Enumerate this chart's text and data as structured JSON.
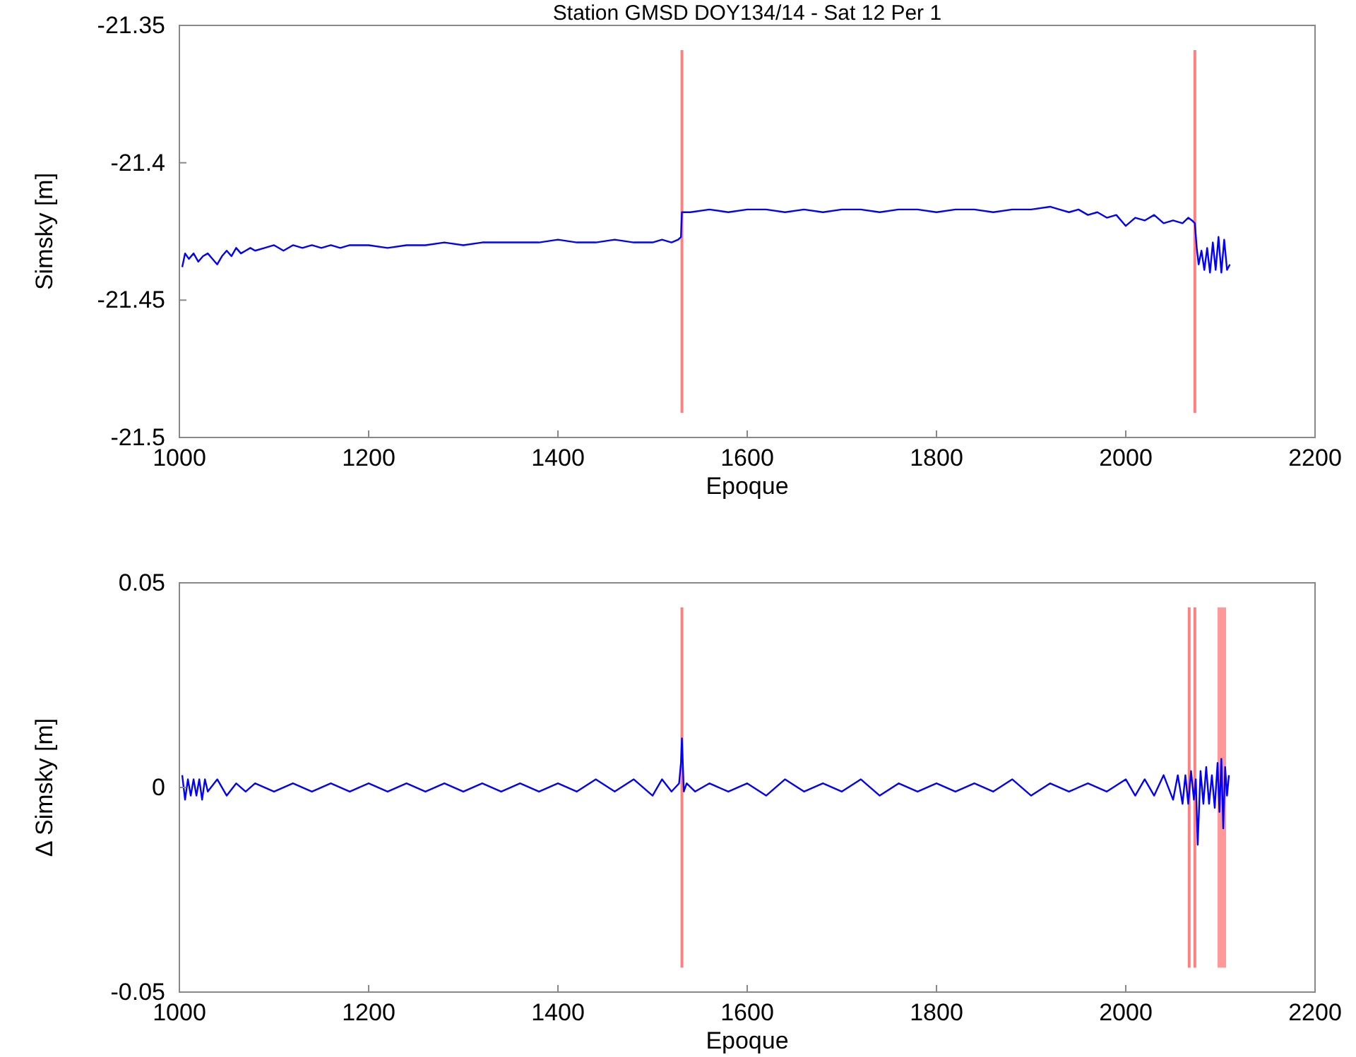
{
  "chart_data": [
    {
      "type": "line",
      "title": "Station GMSD DOY134/14 - Sat  12 Per 1",
      "xlabel": "Epoque",
      "ylabel": "Simsky [m]",
      "xlim": [
        1000,
        2200
      ],
      "xticks": [
        1000,
        1200,
        1400,
        1600,
        1800,
        2000,
        2200
      ],
      "ylim": [
        -21.5,
        -21.35
      ],
      "yticks": [
        -21.5,
        -21.45,
        -21.4,
        -21.35
      ],
      "grid": false,
      "series": [
        {
          "color": "#0000ff",
          "x": [
            1003,
            1006,
            1010,
            1015,
            1020,
            1025,
            1030,
            1035,
            1040,
            1045,
            1050,
            1055,
            1060,
            1065,
            1070,
            1075,
            1080,
            1090,
            1100,
            1110,
            1120,
            1130,
            1140,
            1150,
            1160,
            1170,
            1180,
            1200,
            1220,
            1240,
            1260,
            1280,
            1300,
            1320,
            1340,
            1360,
            1380,
            1400,
            1420,
            1440,
            1460,
            1480,
            1500,
            1510,
            1520,
            1527,
            1530,
            1531,
            1540,
            1560,
            1580,
            1600,
            1620,
            1640,
            1660,
            1680,
            1700,
            1720,
            1740,
            1760,
            1780,
            1800,
            1820,
            1840,
            1860,
            1880,
            1900,
            1920,
            1930,
            1940,
            1950,
            1960,
            1970,
            1980,
            1990,
            2000,
            2010,
            2020,
            2030,
            2040,
            2050,
            2060,
            2066,
            2070,
            2073,
            2075,
            2077,
            2080,
            2083,
            2086,
            2089,
            2092,
            2095,
            2098,
            2101,
            2104,
            2107,
            2110
          ],
          "values": [
            -21.438,
            -21.433,
            -21.435,
            -21.433,
            -21.436,
            -21.434,
            -21.433,
            -21.435,
            -21.437,
            -21.434,
            -21.432,
            -21.434,
            -21.431,
            -21.433,
            -21.432,
            -21.431,
            -21.432,
            -21.431,
            -21.43,
            -21.432,
            -21.43,
            -21.431,
            -21.43,
            -21.431,
            -21.43,
            -21.431,
            -21.43,
            -21.43,
            -21.431,
            -21.43,
            -21.43,
            -21.429,
            -21.43,
            -21.429,
            -21.429,
            -21.429,
            -21.429,
            -21.428,
            -21.429,
            -21.429,
            -21.428,
            -21.429,
            -21.429,
            -21.428,
            -21.429,
            -21.428,
            -21.427,
            -21.418,
            -21.418,
            -21.417,
            -21.418,
            -21.417,
            -21.417,
            -21.418,
            -21.417,
            -21.418,
            -21.417,
            -21.417,
            -21.418,
            -21.417,
            -21.417,
            -21.418,
            -21.417,
            -21.417,
            -21.418,
            -21.417,
            -21.417,
            -21.416,
            -21.417,
            -21.418,
            -21.417,
            -21.419,
            -21.418,
            -21.42,
            -21.419,
            -21.423,
            -21.42,
            -21.421,
            -21.419,
            -21.422,
            -21.421,
            -21.422,
            -21.42,
            -21.421,
            -21.422,
            -21.431,
            -21.437,
            -21.432,
            -21.439,
            -21.431,
            -21.44,
            -21.429,
            -21.439,
            -21.427,
            -21.44,
            -21.428,
            -21.439,
            -21.437
          ]
        }
      ],
      "ref_lines": [
        {
          "axis": "x",
          "value": 1531,
          "color": "#ff8080"
        },
        {
          "axis": "x",
          "value": 2073,
          "color": "#ff8080"
        }
      ]
    },
    {
      "type": "line",
      "xlabel": "Epoque",
      "ylabel": "Δ Simsky [m]",
      "xlim": [
        1000,
        2200
      ],
      "xticks": [
        1000,
        1200,
        1400,
        1600,
        1800,
        2000,
        2200
      ],
      "ylim": [
        -0.05,
        0.05
      ],
      "yticks": [
        -0.05,
        0,
        0.05
      ],
      "grid": false,
      "series": [
        {
          "color": "#0000ff",
          "x": [
            1003,
            1006,
            1009,
            1012,
            1015,
            1018,
            1021,
            1024,
            1027,
            1030,
            1040,
            1050,
            1060,
            1070,
            1080,
            1100,
            1120,
            1140,
            1160,
            1180,
            1200,
            1220,
            1240,
            1260,
            1280,
            1300,
            1320,
            1340,
            1360,
            1380,
            1400,
            1420,
            1440,
            1460,
            1480,
            1500,
            1510,
            1520,
            1528,
            1530,
            1531,
            1533,
            1536,
            1545,
            1560,
            1580,
            1600,
            1620,
            1640,
            1660,
            1680,
            1700,
            1720,
            1740,
            1760,
            1780,
            1800,
            1820,
            1840,
            1860,
            1880,
            1900,
            1920,
            1940,
            1960,
            1980,
            2000,
            2010,
            2020,
            2030,
            2040,
            2050,
            2055,
            2060,
            2063,
            2066,
            2069,
            2072,
            2074,
            2076,
            2079,
            2082,
            2085,
            2088,
            2091,
            2094,
            2097,
            2099,
            2101,
            2103,
            2105,
            2107,
            2109
          ],
          "values": [
            0.003,
            -0.003,
            0.002,
            -0.002,
            0.002,
            -0.002,
            0.002,
            -0.003,
            0.002,
            -0.001,
            0.002,
            -0.002,
            0.001,
            -0.001,
            0.001,
            -0.001,
            0.001,
            -0.001,
            0.001,
            -0.001,
            0.001,
            -0.001,
            0.001,
            -0.001,
            0.001,
            -0.001,
            0.001,
            -0.001,
            0.001,
            -0.001,
            0.001,
            -0.001,
            0.002,
            -0.001,
            0.002,
            -0.002,
            0.002,
            -0.001,
            0.001,
            0.006,
            0.012,
            -0.001,
            0.001,
            -0.001,
            0.001,
            -0.001,
            0.001,
            -0.002,
            0.002,
            -0.001,
            0.001,
            -0.001,
            0.002,
            -0.002,
            0.001,
            -0.001,
            0.001,
            -0.001,
            0.001,
            -0.001,
            0.002,
            -0.002,
            0.001,
            -0.001,
            0.001,
            -0.001,
            0.002,
            -0.002,
            0.002,
            -0.002,
            0.003,
            -0.003,
            0.003,
            -0.004,
            0.003,
            -0.004,
            0.004,
            -0.003,
            0.002,
            -0.014,
            0.004,
            -0.004,
            0.005,
            -0.004,
            0.003,
            -0.005,
            0.006,
            -0.006,
            0.007,
            -0.01,
            0.005,
            -0.002,
            0.003
          ]
        }
      ],
      "ref_lines": [
        {
          "axis": "x",
          "value": 1531,
          "color": "#ff8080"
        },
        {
          "axis": "x",
          "value": 2067,
          "color": "#ff8080"
        },
        {
          "axis": "x",
          "value": 2073,
          "color": "#ff8080"
        }
      ],
      "bands": [
        {
          "axis": "x",
          "from": 2097,
          "to": 2106,
          "color": "#ff9999"
        }
      ]
    }
  ]
}
